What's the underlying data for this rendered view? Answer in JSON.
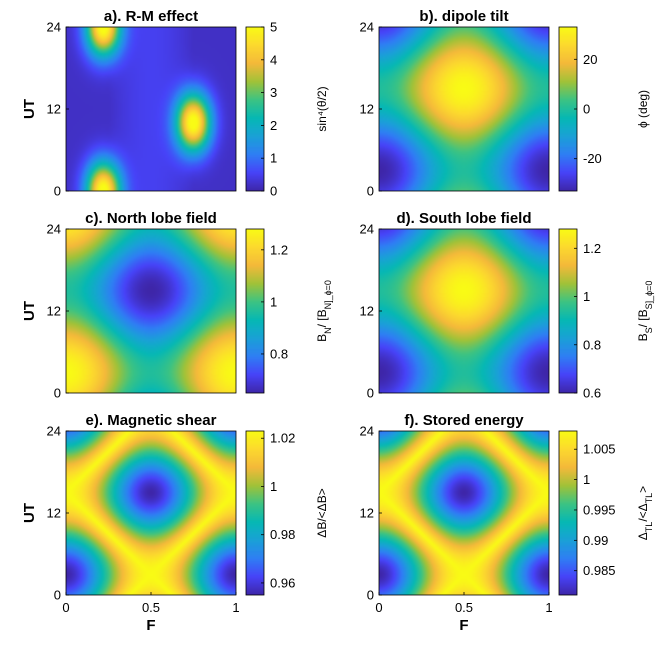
{
  "chart_data": [
    {
      "type": "heatmap",
      "title": "a). R-M effect",
      "xlabel": "",
      "ylabel": "UT",
      "xlim": [
        0,
        1
      ],
      "ylim": [
        0,
        24
      ],
      "xticks": [],
      "yticks": [
        "0",
        "12",
        "24"
      ],
      "colorbar": {
        "label": "sin⁴(θ/2)",
        "min": 0,
        "max": 5,
        "ticks": [
          "0",
          "1",
          "2",
          "3",
          "4",
          "5"
        ]
      },
      "peaks": [
        {
          "F": 0.22,
          "UT": 24,
          "value": 5
        },
        {
          "F": 0.75,
          "UT": 10,
          "value": 5
        },
        {
          "F": 0.22,
          "UT": 0,
          "value": 5
        }
      ],
      "background_value": 0.2
    },
    {
      "type": "heatmap",
      "title": "b). dipole tilt",
      "xlabel": "",
      "ylabel": "",
      "xlim": [
        0,
        1
      ],
      "ylim": [
        0,
        24
      ],
      "xticks": [],
      "yticks": [
        "0",
        "12",
        "24"
      ],
      "colorbar": {
        "label": "ϕ (deg)",
        "min": -33,
        "max": 33,
        "ticks": [
          "20",
          "0",
          "-20"
        ]
      },
      "max_value": 33,
      "max_at": {
        "F": 0.5,
        "UT": 15
      },
      "min_value": -33,
      "min_at": [
        {
          "F": 0,
          "UT": 3
        },
        {
          "F": 1,
          "UT": 3
        }
      ]
    },
    {
      "type": "heatmap",
      "title": "c). North lobe field",
      "xlabel": "",
      "ylabel": "UT",
      "xlim": [
        0,
        1
      ],
      "ylim": [
        0,
        24
      ],
      "xticks": [],
      "yticks": [
        "0",
        "12",
        "24"
      ],
      "colorbar": {
        "label": "B_N/ [B_N]_ϕ=0",
        "min": 0.65,
        "max": 1.28,
        "ticks": [
          "1.2",
          "1",
          "0.8"
        ]
      },
      "min_value": 0.65,
      "min_at": {
        "F": 0.5,
        "UT": 15
      },
      "max_value": 1.28,
      "max_at": [
        {
          "F": 0,
          "UT": 3
        },
        {
          "F": 1,
          "UT": 3
        }
      ]
    },
    {
      "type": "heatmap",
      "title": "d). South lobe field",
      "xlabel": "",
      "ylabel": "",
      "xlim": [
        0,
        1
      ],
      "ylim": [
        0,
        24
      ],
      "xticks": [],
      "yticks": [
        "0",
        "12",
        "24"
      ],
      "colorbar": {
        "label": "B_S/ [B_S]_ϕ=0",
        "min": 0.6,
        "max": 1.28,
        "ticks": [
          "1.2",
          "1",
          "0.8",
          "0.6"
        ]
      },
      "max_value": 1.28,
      "max_at": {
        "F": 0.5,
        "UT": 15
      },
      "min_value": 0.6,
      "min_at": [
        {
          "F": 0,
          "UT": 3
        },
        {
          "F": 1,
          "UT": 3
        }
      ]
    },
    {
      "type": "heatmap",
      "title": "e). Magnetic shear",
      "xlabel": "F",
      "ylabel": "UT",
      "xlim": [
        0,
        1
      ],
      "ylim": [
        0,
        24
      ],
      "xticks": [
        "0",
        "0.5",
        "1"
      ],
      "yticks": [
        "0",
        "12",
        "24"
      ],
      "colorbar": {
        "label": "ΔB/<ΔB>",
        "min": 0.955,
        "max": 1.023,
        "ticks": [
          "1.02",
          "1",
          "0.98",
          "0.96"
        ]
      },
      "min_value": 0.955,
      "min_at": [
        {
          "F": 0.5,
          "UT": 15
        },
        {
          "F": 0,
          "UT": 3
        },
        {
          "F": 1,
          "UT": 3
        }
      ],
      "max_value": 1.023
    },
    {
      "type": "heatmap",
      "title": "f). Stored energy",
      "xlabel": "F",
      "ylabel": "",
      "xlim": [
        0,
        1
      ],
      "ylim": [
        0,
        24
      ],
      "xticks": [
        "0",
        "0.5",
        "1"
      ],
      "yticks": [
        "0",
        "12",
        "24"
      ],
      "colorbar": {
        "label": "Δ_TL/<Δ_TL>",
        "min": 0.981,
        "max": 1.008,
        "ticks": [
          "1.005",
          "1",
          "0.995",
          "0.99",
          "0.985"
        ]
      },
      "min_value": 0.981,
      "min_at": [
        {
          "F": 0.5,
          "UT": 15
        },
        {
          "F": 0,
          "UT": 3
        },
        {
          "F": 1,
          "UT": 3
        }
      ],
      "max_value": 1.008
    }
  ],
  "colormap": [
    "#3e26a8",
    "#4743f8",
    "#2f7ef4",
    "#1aa1d7",
    "#06b8b4",
    "#3cc383",
    "#a1c238",
    "#f4b93a",
    "#fcd92e",
    "#f9fb15"
  ]
}
